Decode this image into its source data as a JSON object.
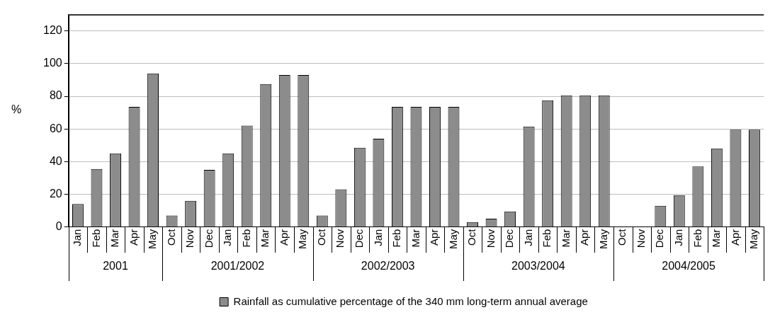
{
  "chart_data": {
    "type": "bar",
    "ylabel": "%",
    "categories": [
      "Jan",
      "Feb",
      "Mar",
      "Apr",
      "May",
      "Oct",
      "Nov",
      "Dec",
      "Jan",
      "Feb",
      "Mar",
      "Apr",
      "May",
      "Oct",
      "Nov",
      "Dec",
      "Jan",
      "Feb",
      "Mar",
      "Apr",
      "May",
      "Oct",
      "Nov",
      "Dec",
      "Jan",
      "Feb",
      "Mar",
      "Apr",
      "May",
      "Oct",
      "Nov",
      "Dec",
      "Jan",
      "Feb",
      "Mar",
      "Apr",
      "May"
    ],
    "series": [
      {
        "name": "Rainfall as cumulative percentage of the 340 mm long-term annual average",
        "color": "#8c8c8c",
        "values": [
          14,
          35.5,
          45,
          73.5,
          94,
          7,
          16,
          35,
          45,
          62,
          87.5,
          93,
          93,
          7,
          23,
          48.5,
          54,
          73.5,
          73.5,
          73.5,
          73.5,
          3,
          5,
          9.5,
          61.5,
          77.5,
          80.5,
          80.5,
          80.5,
          0,
          0,
          13,
          19.5,
          37,
          48,
          59.5,
          59.5
        ]
      }
    ],
    "annotations": [
      "2001",
      "2001/2002",
      "2002/2003",
      "2003/2004",
      "2004/2005"
    ],
    "ylim": [
      0,
      130
    ],
    "yticks": [
      0,
      20,
      40,
      60,
      80,
      100,
      120
    ],
    "grid": "y",
    "legend": "bottom"
  }
}
